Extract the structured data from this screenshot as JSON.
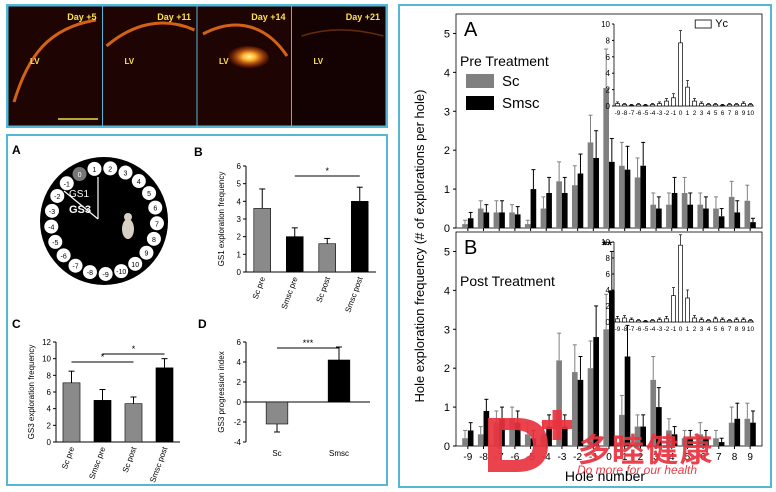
{
  "micro": {
    "days": [
      "Day +5",
      "Day +11",
      "Day +14",
      "Day +21"
    ],
    "region_label": "LV"
  },
  "maze": {
    "panel_letter": "A",
    "hole_numbers": [
      "1",
      "2",
      "3",
      "4",
      "5",
      "6",
      "7",
      "8",
      "9",
      "10",
      "-10",
      "-9",
      "-8",
      "-7",
      "-6",
      "-5",
      "-4",
      "-3",
      "-2",
      "-1"
    ],
    "labels": [
      "GS1",
      "GS3"
    ],
    "target_hole": "0"
  },
  "chart_data": [
    {
      "id": "gs1",
      "panel_letter": "B",
      "type": "bar",
      "categories": [
        "Sc pre",
        "Smsc pre",
        "Sc post",
        "Smsc post"
      ],
      "values": [
        3.6,
        2.0,
        1.6,
        4.0
      ],
      "errors": [
        1.1,
        0.5,
        0.3,
        0.8
      ],
      "colors": [
        "#8a8a8a",
        "#000000",
        "#8a8a8a",
        "#000000"
      ],
      "ylabel": "GS1 exploration frequency",
      "ylim": [
        0,
        6
      ],
      "yticks": [
        0,
        1,
        2,
        3,
        4,
        5,
        6
      ],
      "significance": [
        {
          "from": 1,
          "to": 3,
          "label": "*"
        }
      ]
    },
    {
      "id": "gs3",
      "panel_letter": "C",
      "type": "bar",
      "categories": [
        "Sc pre",
        "Smsc pre",
        "Sc post",
        "Smsc post"
      ],
      "values": [
        7.1,
        5.0,
        4.6,
        8.9
      ],
      "errors": [
        1.4,
        1.3,
        0.8,
        1.1
      ],
      "colors": [
        "#8a8a8a",
        "#000000",
        "#8a8a8a",
        "#000000"
      ],
      "ylabel": "GS3 exploration frequency",
      "ylim": [
        0,
        12
      ],
      "yticks": [
        0,
        2,
        4,
        6,
        8,
        10,
        12
      ],
      "significance": [
        {
          "from": 0,
          "to": 2,
          "label": "*"
        },
        {
          "from": 1,
          "to": 3,
          "label": "*"
        }
      ]
    },
    {
      "id": "gs3prog",
      "panel_letter": "D",
      "type": "bar",
      "categories": [
        "Sc",
        "Smsc"
      ],
      "values": [
        -2.2,
        4.2
      ],
      "errors": [
        0.8,
        1.3
      ],
      "colors": [
        "#8a8a8a",
        "#000000"
      ],
      "ylabel": "GS3 progression index",
      "ylim": [
        -4,
        6
      ],
      "yticks": [
        -4,
        -2,
        0,
        2,
        4,
        6
      ],
      "significance": [
        {
          "from": 0,
          "to": 1,
          "label": "***"
        }
      ]
    },
    {
      "id": "pre",
      "panel_letter": "A",
      "type": "bar",
      "title": "Pre Treatment",
      "x": [
        -9,
        -8,
        -7,
        -6,
        -5,
        -4,
        -3,
        -2,
        -1,
        0,
        1,
        2,
        3,
        4,
        5,
        6,
        7,
        8,
        9
      ],
      "series": [
        {
          "name": "Sc",
          "color": "#808080",
          "values": [
            0.1,
            0.5,
            0.4,
            0.4,
            0.1,
            0.5,
            1.2,
            1.1,
            2.2,
            3.6,
            1.6,
            1.3,
            0.6,
            0.6,
            0.9,
            0.6,
            0.5,
            0.8,
            0.7
          ],
          "errors": [
            0.1,
            0.2,
            0.3,
            0.2,
            0.1,
            0.3,
            0.5,
            0.5,
            0.7,
            1.0,
            0.6,
            0.5,
            0.3,
            0.3,
            0.4,
            0.3,
            0.3,
            0.4,
            0.4
          ]
        },
        {
          "name": "Smsc",
          "color": "#000000",
          "values": [
            0.25,
            0.4,
            0.4,
            0.35,
            1.0,
            0.9,
            0.9,
            1.4,
            1.8,
            1.7,
            1.5,
            1.6,
            0.5,
            0.9,
            0.6,
            0.5,
            0.3,
            0.4,
            0.15
          ],
          "errors": [
            0.15,
            0.2,
            0.3,
            0.2,
            0.5,
            0.4,
            0.4,
            0.5,
            0.7,
            0.6,
            0.6,
            0.6,
            0.3,
            0.4,
            0.3,
            0.3,
            0.2,
            0.3,
            0.1
          ]
        }
      ],
      "ylim": [
        0,
        5.5
      ],
      "yticks": [
        0,
        1,
        2,
        3,
        4,
        5
      ],
      "inset": {
        "legend": "Yc",
        "x_labels": [
          "-9",
          "-8",
          "-7",
          "-6",
          "-5",
          "-4",
          "-3",
          "-2",
          "-1",
          "0",
          "1",
          "2",
          "3",
          "4",
          "5",
          "6",
          "7",
          "8",
          "9",
          "10"
        ],
        "values": [
          0.3,
          0.2,
          0.1,
          0.2,
          0.1,
          0.2,
          0.3,
          0.6,
          1.0,
          7.7,
          2.3,
          0.6,
          0.3,
          0.2,
          0.2,
          0.1,
          0.2,
          0.2,
          0.3,
          0.2
        ],
        "errors": [
          0.2,
          0.1,
          0.1,
          0.1,
          0.1,
          0.1,
          0.2,
          0.3,
          0.5,
          1.5,
          0.8,
          0.3,
          0.2,
          0.1,
          0.1,
          0.1,
          0.1,
          0.1,
          0.2,
          0.1
        ],
        "ylim": [
          0,
          10
        ],
        "yticks": [
          0,
          2,
          4,
          6,
          8,
          10
        ]
      }
    },
    {
      "id": "post",
      "panel_letter": "B",
      "type": "bar",
      "title": "Post Treatment",
      "x": [
        -9,
        -8,
        -7,
        -6,
        -5,
        -4,
        -3,
        -2,
        -1,
        0,
        1,
        2,
        3,
        4,
        5,
        6,
        7,
        8,
        9
      ],
      "series": [
        {
          "name": "Sc",
          "color": "#808080",
          "values": [
            0.2,
            0.3,
            0.6,
            0.7,
            0.3,
            0.3,
            2.2,
            1.9,
            2.0,
            3.0,
            0.8,
            0.5,
            1.7,
            0.4,
            0.2,
            0.3,
            0.2,
            0.6,
            0.7
          ],
          "errors": [
            0.2,
            0.2,
            0.3,
            0.3,
            0.3,
            0.3,
            0.7,
            0.7,
            0.7,
            0.9,
            0.5,
            0.3,
            0.6,
            0.3,
            0.2,
            0.3,
            0.2,
            0.4,
            0.4
          ]
        },
        {
          "name": "Smsc",
          "color": "#000000",
          "values": [
            0.4,
            0.9,
            0.7,
            0.6,
            0.2,
            0.5,
            0.5,
            1.7,
            2.8,
            4.0,
            2.3,
            0.5,
            1.0,
            0.3,
            0.2,
            0.2,
            0.1,
            0.7,
            0.6
          ],
          "errors": [
            0.2,
            0.3,
            0.3,
            0.3,
            0.2,
            0.3,
            0.3,
            0.6,
            0.8,
            1.0,
            0.8,
            0.3,
            0.5,
            0.2,
            0.2,
            0.2,
            0.1,
            0.4,
            0.3
          ]
        }
      ],
      "ylim": [
        0,
        5.5
      ],
      "yticks": [
        0,
        1,
        2,
        3,
        4,
        5
      ],
      "significance": [
        {
          "at": 0,
          "label": "**"
        }
      ],
      "inset": {
        "x_labels": [
          "-9",
          "-8",
          "-7",
          "-6",
          "-5",
          "-4",
          "-3",
          "-2",
          "-1",
          "0",
          "1",
          "2",
          "3",
          "4",
          "5",
          "6",
          "7",
          "8",
          "9",
          "10"
        ],
        "values": [
          0.4,
          0.5,
          0.3,
          0.2,
          0.1,
          0.2,
          0.3,
          0.4,
          3.3,
          9.6,
          3.0,
          0.5,
          0.3,
          0.2,
          0.4,
          0.3,
          0.2,
          0.3,
          0.3,
          0.2
        ],
        "errors": [
          0.3,
          0.3,
          0.2,
          0.1,
          0.1,
          0.1,
          0.2,
          0.3,
          1.0,
          1.3,
          1.0,
          0.3,
          0.2,
          0.1,
          0.2,
          0.2,
          0.1,
          0.2,
          0.2,
          0.1
        ],
        "ylim": [
          0,
          10
        ],
        "yticks": [
          0,
          2,
          4,
          6,
          8,
          10
        ]
      }
    }
  ],
  "main_axis": {
    "ylabel": "Hole exploration frequency (# of explorations per hole)",
    "xlabel": "Hole number"
  },
  "watermark": {
    "brand_cn": "多睦健康",
    "brand_en": "Do more for our health"
  },
  "colors": {
    "frame": "#55b7d6",
    "fluor": "#ff7a1a",
    "brand": "#e8333f"
  }
}
